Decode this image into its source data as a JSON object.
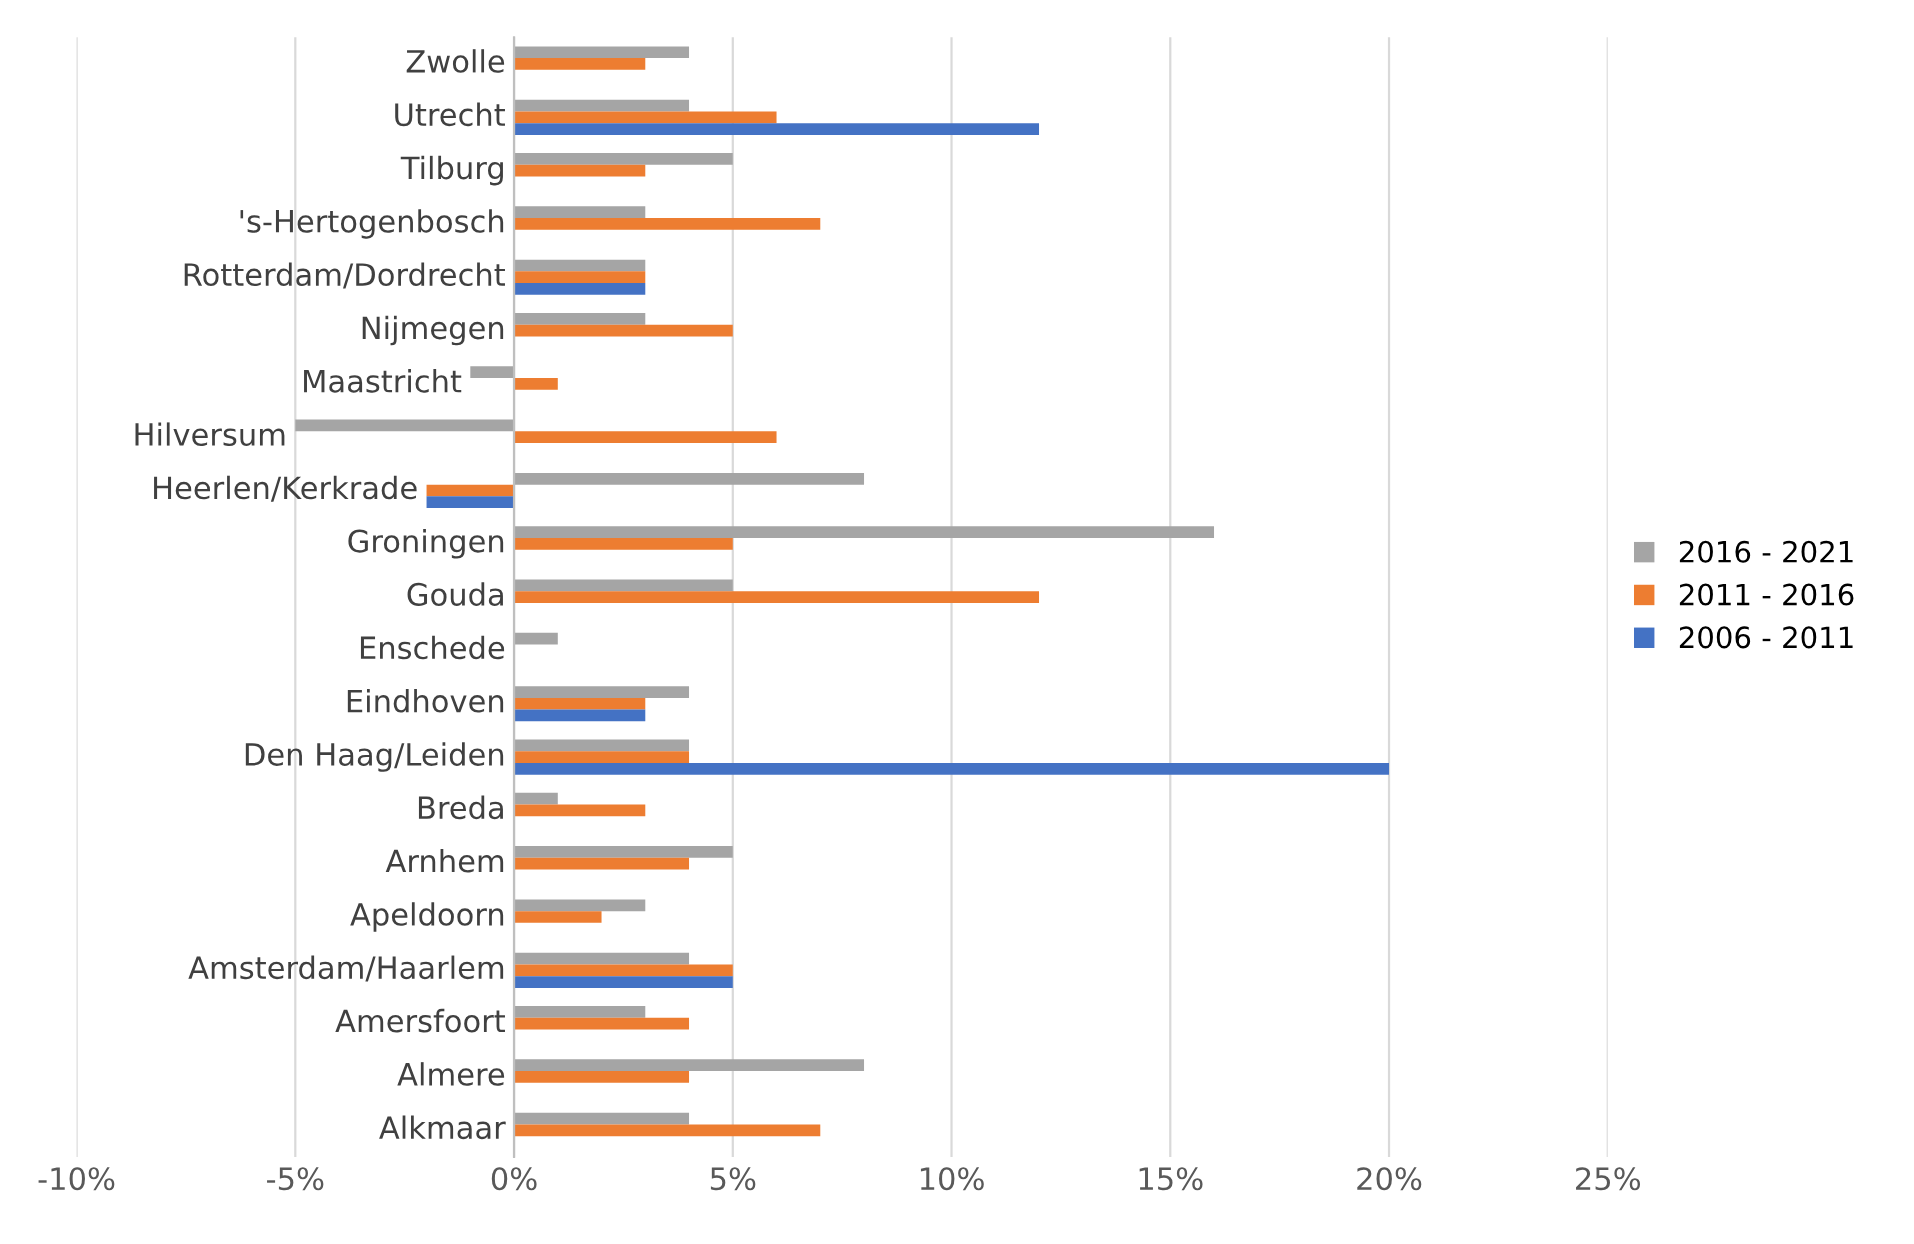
{
  "chart_data": {
    "type": "bar",
    "orientation": "horizontal",
    "categories": [
      "Zwolle",
      "Utrecht",
      "Tilburg",
      "'s-Hertogenbosch",
      "Rotterdam/Dordrecht",
      "Nijmegen",
      "Maastricht",
      "Hilversum",
      "Heerlen/Kerkrade",
      "Groningen",
      "Gouda",
      "Enschede",
      "Eindhoven",
      "Den Haag/Leiden",
      "Breda",
      "Arnhem",
      "Apeldoorn",
      "Amsterdam/Haarlem",
      "Amersfoort",
      "Almere",
      "Alkmaar"
    ],
    "series": [
      {
        "name": "2016 - 2021",
        "color": "#a5a5a5",
        "values": [
          4,
          4,
          5,
          3,
          3,
          3,
          -1,
          -5,
          8,
          16,
          5,
          1,
          4,
          4,
          1,
          5,
          3,
          4,
          3,
          8,
          4
        ]
      },
      {
        "name": "2011 - 2016",
        "color": "#ed7d31",
        "values": [
          3,
          6,
          3,
          7,
          3,
          5,
          1,
          6,
          -2,
          5,
          12,
          null,
          3,
          4,
          3,
          4,
          2,
          5,
          4,
          4,
          7
        ]
      },
      {
        "name": "2006 - 2011",
        "color": "#4472c4",
        "values": [
          null,
          12,
          null,
          null,
          3,
          null,
          null,
          null,
          -2,
          null,
          null,
          null,
          3,
          20,
          null,
          null,
          null,
          5,
          null,
          null,
          null
        ]
      }
    ],
    "xlim": [
      -10,
      25
    ],
    "xticks": [
      {
        "value": -10,
        "label": "-10%"
      },
      {
        "value": -5,
        "label": "-5%"
      },
      {
        "value": 0,
        "label": "0%"
      },
      {
        "value": 5,
        "label": "5%"
      },
      {
        "value": 10,
        "label": "10%"
      },
      {
        "value": 15,
        "label": "15%"
      },
      {
        "value": 20,
        "label": "20%"
      },
      {
        "value": 25,
        "label": "25%"
      }
    ],
    "grid": "x",
    "legend": "right"
  }
}
